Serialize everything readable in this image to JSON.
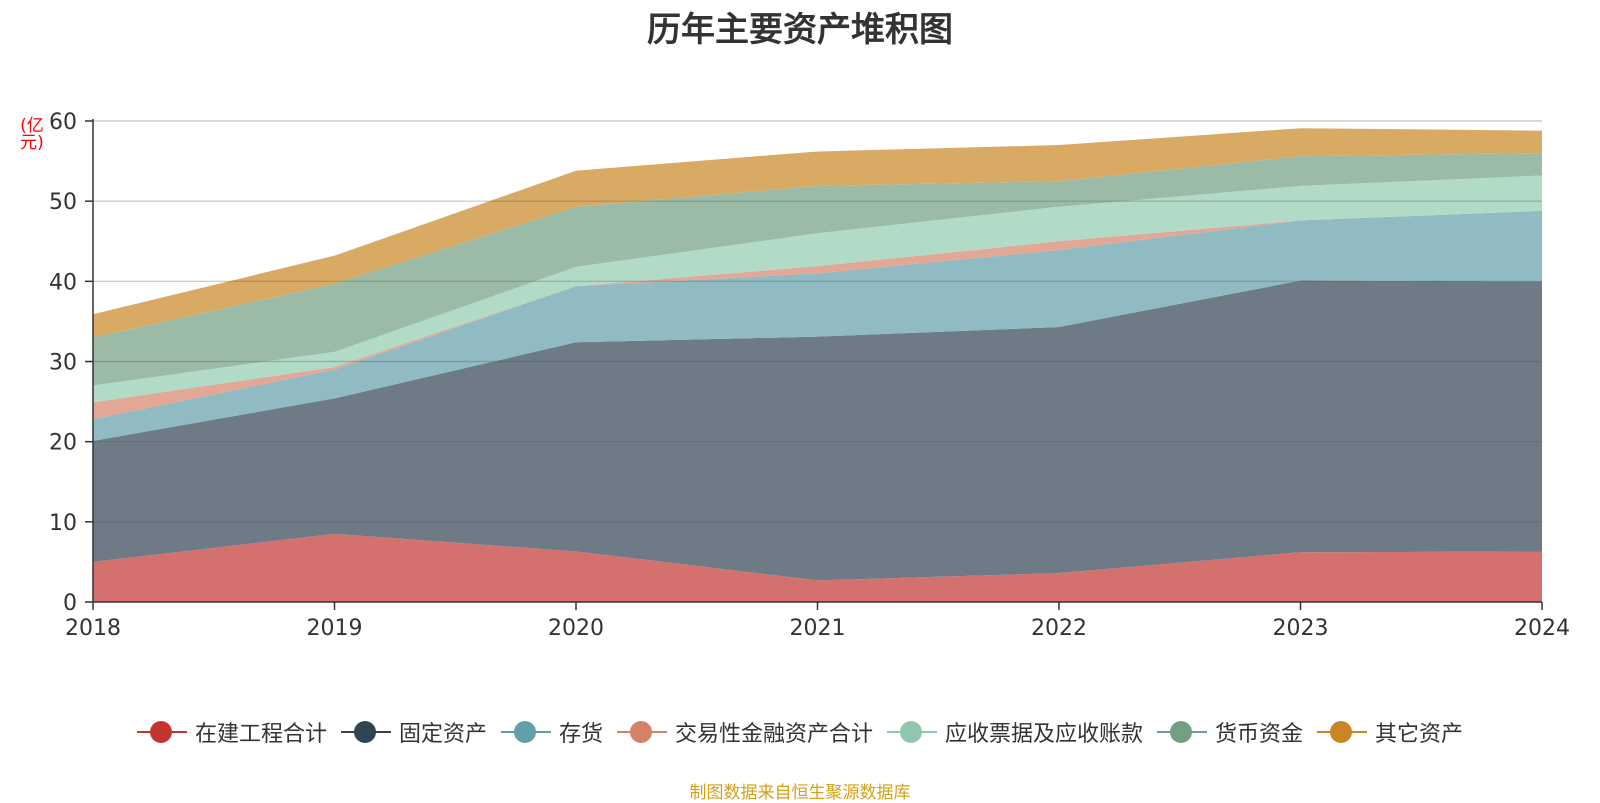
{
  "chart_data": {
    "type": "area",
    "stacked": true,
    "title": "历年主要资产堆积图",
    "ylabel": "(亿元)",
    "xlabel": "",
    "ylim": [
      0,
      60
    ],
    "yticks": [
      "0",
      "10",
      "20",
      "30",
      "40",
      "50",
      "60"
    ],
    "categories": [
      "2018",
      "2019",
      "2020",
      "2021",
      "2022",
      "2023",
      "2024"
    ],
    "grid": true,
    "legend_position": "bottom",
    "series": [
      {
        "name": "在建工程合计",
        "color": "#c23531",
        "fill": "#d4716e",
        "values": [
          5.0,
          8.5,
          6.3,
          2.7,
          3.6,
          6.2,
          6.3
        ]
      },
      {
        "name": "固定资产",
        "color": "#2f4554",
        "fill": "#6e7b86",
        "values": [
          15.1,
          16.9,
          26.1,
          30.4,
          30.7,
          33.9,
          33.7
        ]
      },
      {
        "name": "存货",
        "color": "#61a0a8",
        "fill": "#90bbc2",
        "values": [
          2.7,
          3.6,
          7.0,
          7.9,
          9.6,
          7.5,
          8.8
        ]
      },
      {
        "name": "交易性金融资产合计",
        "color": "#d48265",
        "fill": "#e2a795",
        "values": [
          2.1,
          0.3,
          0.0,
          0.9,
          1.1,
          0.0,
          0.0
        ]
      },
      {
        "name": "应收票据及应收账款",
        "color": "#91c7ae",
        "fill": "#b1dac7",
        "values": [
          2.1,
          1.9,
          2.4,
          4.1,
          4.3,
          4.3,
          4.4
        ]
      },
      {
        "name": "货币资金",
        "color": "#749f83",
        "fill": "#9cbba6",
        "values": [
          6.0,
          8.5,
          7.5,
          5.9,
          3.2,
          3.7,
          2.8
        ]
      },
      {
        "name": "其它资产",
        "color": "#ca8622",
        "fill": "#d9aa64",
        "values": [
          2.9,
          3.5,
          4.5,
          4.3,
          4.5,
          3.5,
          2.8
        ]
      }
    ]
  },
  "source_text": "制图数据来自恒生聚源数据库"
}
